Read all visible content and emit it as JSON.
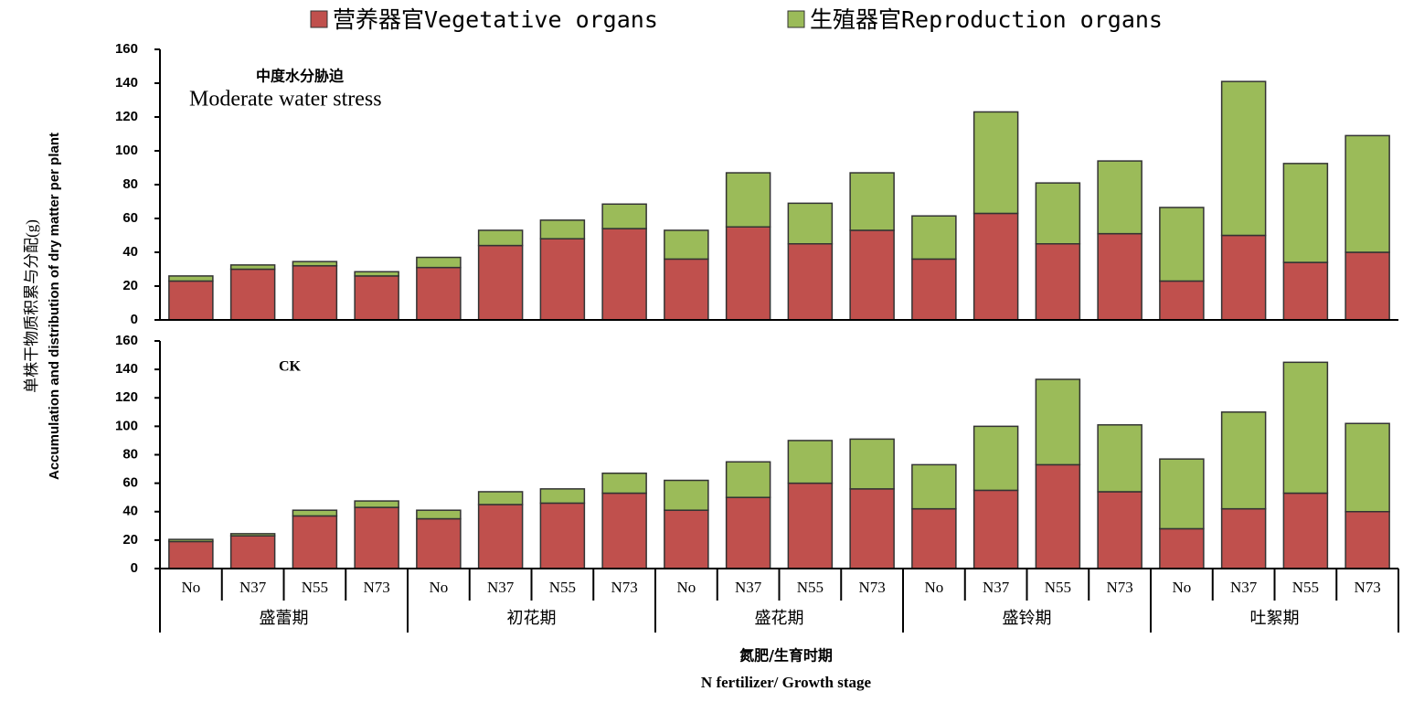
{
  "chart_data": [
    {
      "type": "bar",
      "stacked": true,
      "annotation": "中度水分胁迫",
      "subtitle": "Moderate water stress",
      "series": [
        {
          "name": "营养器官Vegetative organs",
          "color": "#c0504d",
          "values": [
            23,
            30,
            32,
            26,
            31,
            44,
            48,
            54,
            36,
            55,
            45,
            53,
            36,
            63,
            45,
            51,
            23,
            50,
            34,
            40
          ]
        },
        {
          "name": "生殖器官Reproduction organs",
          "color": "#9bbb59",
          "values": [
            3,
            2.5,
            2.5,
            2.5,
            6,
            9,
            11,
            14.5,
            17,
            32,
            24,
            34,
            25.5,
            60,
            36,
            43,
            43.5,
            91,
            58.5,
            69
          ]
        }
      ],
      "ylim": [
        0,
        160
      ],
      "yticks": [
        0,
        20,
        40,
        60,
        80,
        100,
        120,
        140,
        160
      ]
    },
    {
      "type": "bar",
      "stacked": true,
      "annotation": "CK",
      "categories": [
        "No",
        "N37",
        "N55",
        "N73",
        "No",
        "N37",
        "N55",
        "N73",
        "No",
        "N37",
        "N55",
        "N73",
        "No",
        "N37",
        "N55",
        "N73",
        "No",
        "N37",
        "N55",
        "N73"
      ],
      "groups": [
        "盛蕾期",
        "初花期",
        "盛花期",
        "盛铃期",
        "吐絮期"
      ],
      "series": [
        {
          "color": "#c0504d",
          "values": [
            19,
            23,
            37,
            43,
            35,
            45,
            46,
            53,
            41,
            50,
            60,
            56,
            42,
            55,
            73,
            54,
            28,
            42,
            53,
            40
          ]
        },
        {
          "color": "#9bbb59",
          "values": [
            1.5,
            1.5,
            4,
            4.5,
            6,
            9,
            10,
            14,
            21,
            25,
            30,
            35,
            31,
            45,
            60,
            47,
            49,
            68,
            92,
            62
          ]
        }
      ],
      "ylim": [
        0,
        160
      ],
      "yticks": [
        0,
        20,
        40,
        60,
        80,
        100,
        120,
        140,
        160
      ],
      "ylabel": [
        "单株干物质积累与分配(g)",
        "Accumulation and distribution of dry matter per plant"
      ],
      "xlabel": [
        "氮肥/生育时期",
        "N fertilizer/ Growth stage"
      ]
    }
  ]
}
